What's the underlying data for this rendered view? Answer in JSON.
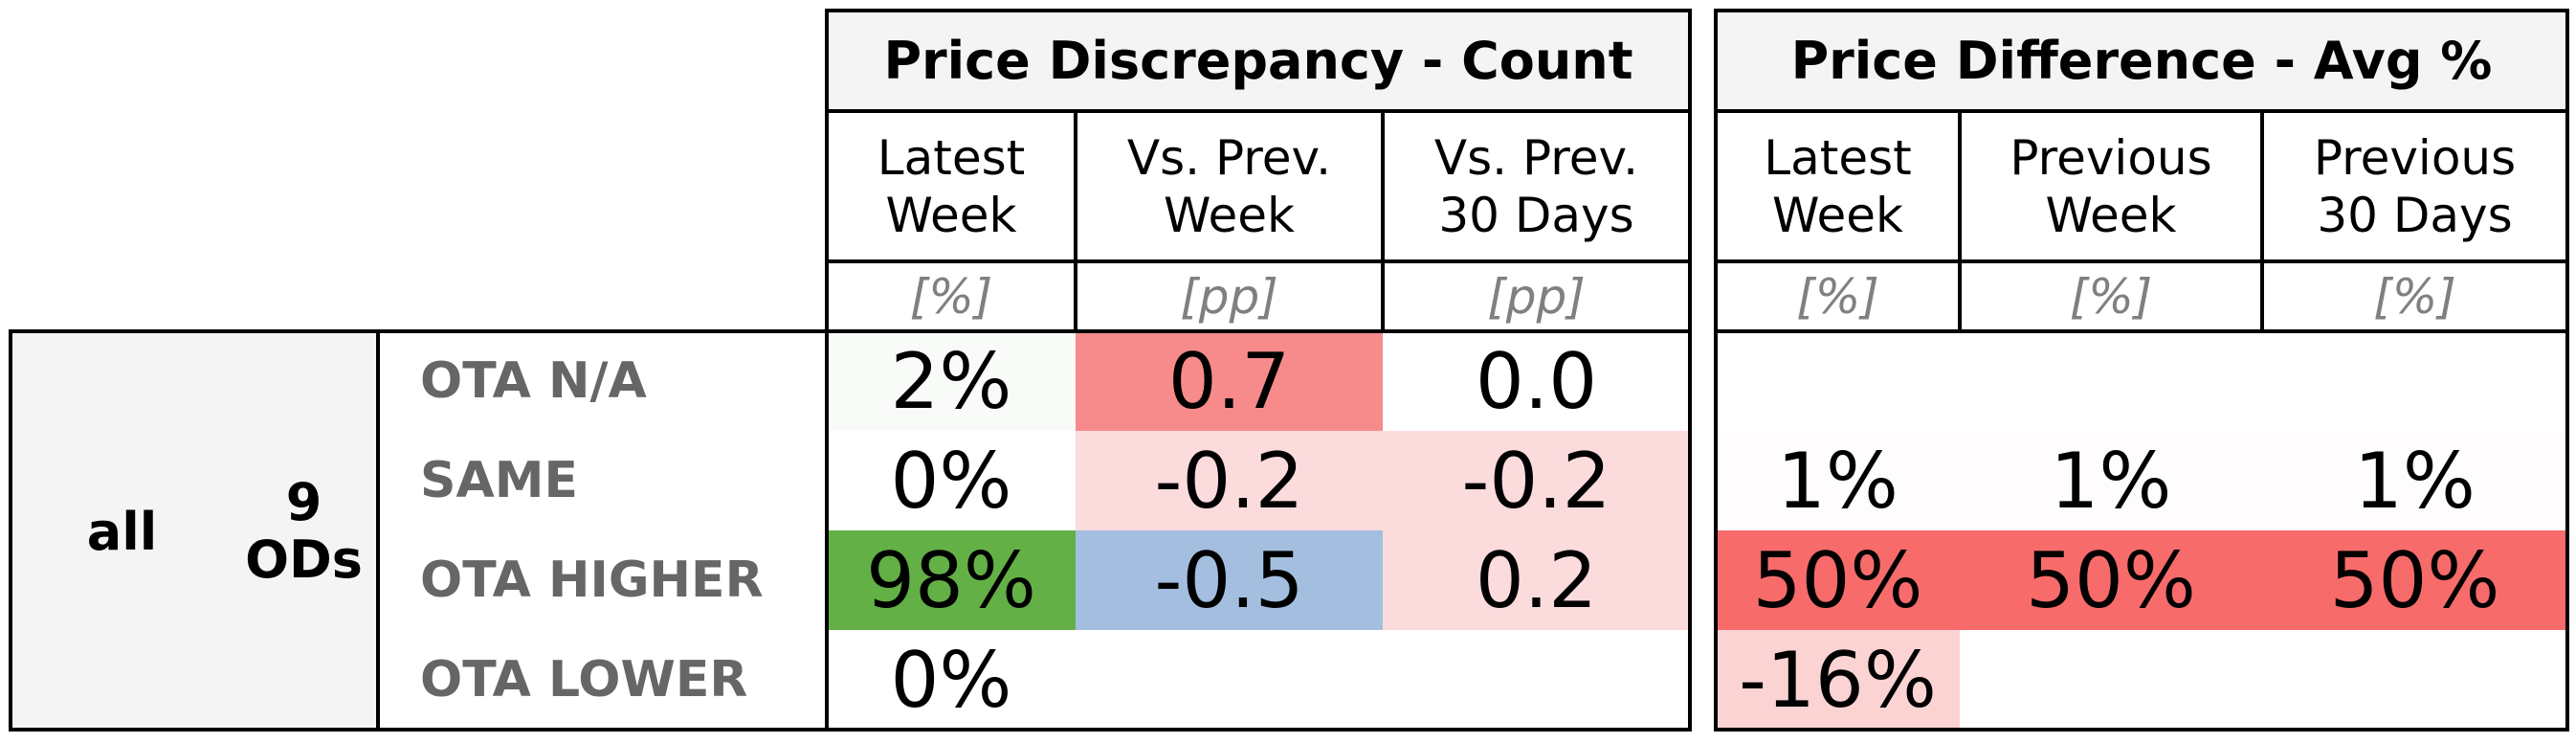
{
  "chart_data": {
    "type": "table",
    "groups": [
      {
        "title": "Price Discrepancy - Count",
        "columns": [
          {
            "header": "Latest\nWeek",
            "unit": "[%]"
          },
          {
            "header": "Vs. Prev.\nWeek",
            "unit": "[pp]"
          },
          {
            "header": "Vs. Prev.\n30 Days",
            "unit": "[pp]"
          }
        ]
      },
      {
        "title": "Price Difference - Avg %",
        "columns": [
          {
            "header": "Latest\nWeek",
            "unit": "[%]"
          },
          {
            "header": "Previous\nWeek",
            "unit": "[%]"
          },
          {
            "header": "Previous\n30 Days",
            "unit": "[%]"
          }
        ]
      }
    ],
    "segment": {
      "name": "all",
      "count": "9\nODs"
    },
    "rows": [
      {
        "label": "OTA N/A",
        "count": [
          "2%",
          "0.7",
          "0.0"
        ],
        "count_colors": [
          "#f9fbf9",
          "#f78b8b",
          "#ffffff"
        ],
        "diff": [
          "",
          "",
          ""
        ],
        "diff_colors": [
          "#ffffff",
          "#ffffff",
          "#ffffff"
        ]
      },
      {
        "label": "SAME",
        "count": [
          "0%",
          "-0.2",
          "-0.2"
        ],
        "count_colors": [
          "#ffffff",
          "#fcdbdd",
          "#fcdbdd"
        ],
        "diff": [
          "1%",
          "1%",
          "1%"
        ],
        "diff_colors": [
          "#fefcfc",
          "#fefcfc",
          "#fefcfc"
        ]
      },
      {
        "label": "OTA HIGHER",
        "count": [
          "98%",
          "-0.5",
          "0.2"
        ],
        "count_colors": [
          "#63b046",
          "#a4bee0",
          "#fcdbdd"
        ],
        "diff": [
          "50%",
          "50%",
          "50%"
        ],
        "diff_colors": [
          "#f76b6b",
          "#f76b6b",
          "#f76b6b"
        ]
      },
      {
        "label": "OTA LOWER",
        "count": [
          "0%",
          "",
          ""
        ],
        "count_colors": [
          "#ffffff",
          "#ffffff",
          "#ffffff"
        ],
        "diff": [
          "-16%",
          "",
          ""
        ],
        "diff_colors": [
          "#fcd3d3",
          "#ffffff",
          "#ffffff"
        ]
      }
    ]
  }
}
